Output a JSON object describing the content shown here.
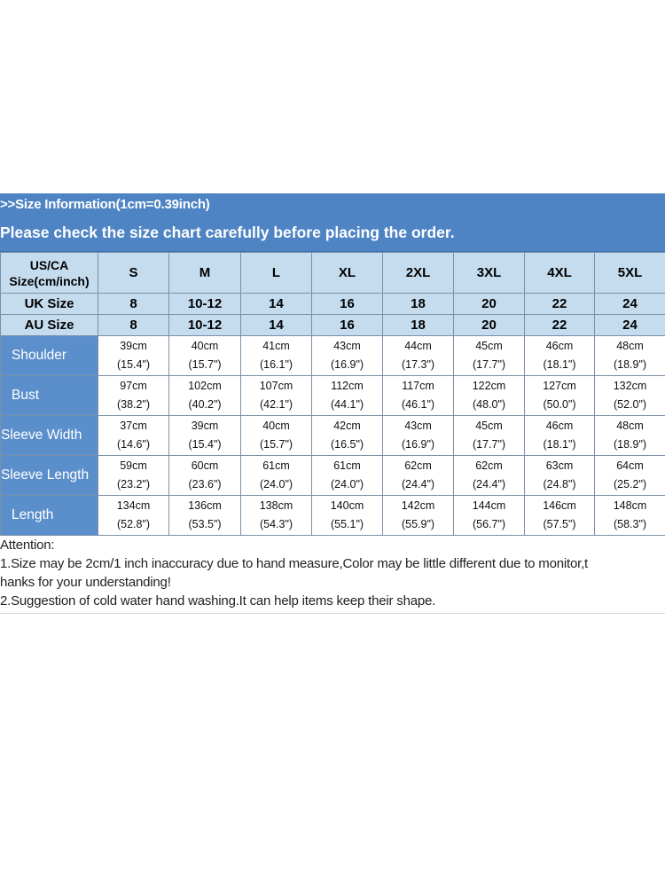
{
  "banner": {
    "line1": ">>Size Information(1cm=0.39inch)",
    "line2": "Please check the size chart carefully before placing the order."
  },
  "table": {
    "header_label": "US/CA Size(cm/inch)",
    "header_label_line1": "US/CA",
    "header_label_line2": "Size(cm/inch)",
    "sizes": [
      "S",
      "M",
      "L",
      "XL",
      "2XL",
      "3XL",
      "4XL",
      "5XL"
    ],
    "uk_label": "UK Size",
    "uk": [
      "8",
      "10-12",
      "14",
      "16",
      "18",
      "20",
      "22",
      "24"
    ],
    "au_label": "AU Size",
    "au": [
      "8",
      "10-12",
      "14",
      "16",
      "18",
      "20",
      "22",
      "24"
    ],
    "rows": [
      {
        "label": "Shoulder",
        "cm": [
          "39cm",
          "40cm",
          "41cm",
          "43cm",
          "44cm",
          "45cm",
          "46cm",
          "48cm"
        ],
        "inch": [
          "(15.4\")",
          "(15.7\")",
          "(16.1\")",
          "(16.9\")",
          "(17.3\")",
          "(17.7\")",
          "(18.1\")",
          "(18.9\")"
        ]
      },
      {
        "label": "Bust",
        "cm": [
          "97cm",
          "102cm",
          "107cm",
          "112cm",
          "117cm",
          "122cm",
          "127cm",
          "132cm"
        ],
        "inch": [
          "(38.2\")",
          "(40.2\")",
          "(42.1\")",
          "(44.1\")",
          "(46.1\")",
          "(48.0\")",
          "(50.0\")",
          "(52.0\")"
        ]
      },
      {
        "label": "Sleeve Width",
        "cm": [
          "37cm",
          "39cm",
          "40cm",
          "42cm",
          "43cm",
          "45cm",
          "46cm",
          "48cm"
        ],
        "inch": [
          "(14.6\")",
          "(15.4\")",
          "(15.7\")",
          "(16.5\")",
          "(16.9\")",
          "(17.7\")",
          "(18.1\")",
          "(18.9\")"
        ]
      },
      {
        "label": "Sleeve Length",
        "cm": [
          "59cm",
          "60cm",
          "61cm",
          "61cm",
          "62cm",
          "62cm",
          "63cm",
          "64cm"
        ],
        "inch": [
          "(23.2\")",
          "(23.6\")",
          "(24.0\")",
          "(24.0\")",
          "(24.4\")",
          "(24.4\")",
          "(24.8\")",
          "(25.2\")"
        ]
      },
      {
        "label": "Length",
        "cm": [
          "134cm",
          "136cm",
          "138cm",
          "140cm",
          "142cm",
          "144cm",
          "146cm",
          "148cm"
        ],
        "inch": [
          "(52.8\")",
          "(53.5\")",
          "(54.3\")",
          "(55.1\")",
          "(55.9\")",
          "(56.7\")",
          "(57.5\")",
          "(58.3\")"
        ]
      }
    ]
  },
  "attention": {
    "title": "Attention:",
    "note1_line1": "1.Size may be 2cm/1 inch inaccuracy due to hand measure,Color may be little different due to monitor,t",
    "note1_line2": "hanks for your understanding!",
    "note2": "2.Suggestion of cold water hand washing.It can help items keep their shape."
  },
  "colors": {
    "banner": "#4f84c4",
    "header_cells": "#c5dcef",
    "row_labels": "#5b8fcb",
    "grid": "#7a8fa8"
  }
}
